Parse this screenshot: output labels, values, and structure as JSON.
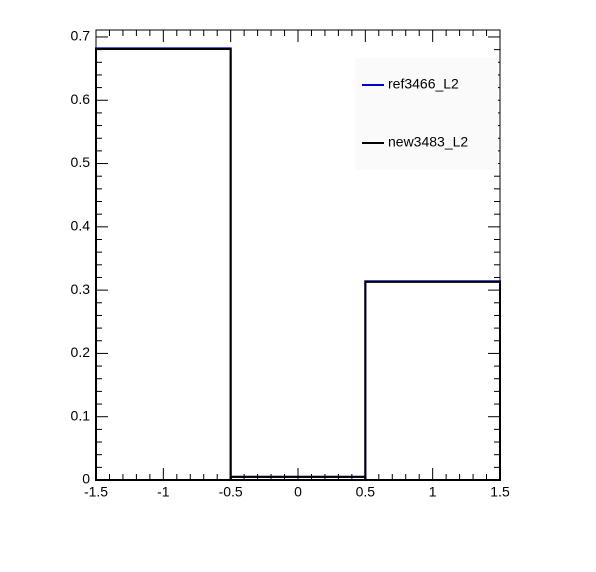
{
  "chart_data": {
    "type": "histogram",
    "bins": [
      -1.5,
      -0.5,
      0.5,
      1.5
    ],
    "series": [
      {
        "name": "ref3466_L2",
        "color": "#0000cc",
        "values": [
          0.682,
          0.005,
          0.314
        ]
      },
      {
        "name": "new3483_L2",
        "color": "#000000",
        "values": [
          0.681,
          0.005,
          0.313
        ]
      }
    ],
    "xlim": [
      -1.5,
      1.5
    ],
    "xticks": [
      -1.5,
      -1,
      -0.5,
      0,
      0.5,
      1,
      1.5
    ],
    "ylim": [
      0,
      0.711
    ],
    "yticks": [
      0,
      0.1,
      0.2,
      0.3,
      0.4,
      0.5,
      0.6,
      0.7
    ],
    "legend": "upper-right"
  }
}
